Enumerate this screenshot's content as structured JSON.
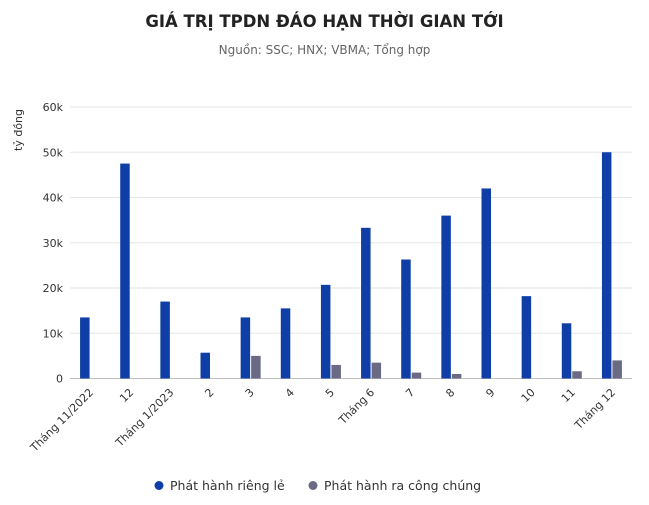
{
  "chart_data": {
    "type": "bar",
    "title": "GIÁ TRỊ TPDN ĐÁO HẠN THỜI GIAN TỚI",
    "subtitle": "Nguồn: SSC; HNX; VBMA; Tổng hợp",
    "ylabel": "tỷ đồng",
    "ylim": [
      0,
      60000
    ],
    "yticks": [
      "0",
      "10k",
      "20k",
      "30k",
      "40k",
      "50k",
      "60k"
    ],
    "ytick_values": [
      0,
      10000,
      20000,
      30000,
      40000,
      50000,
      60000
    ],
    "grid": true,
    "legend_position": "bottom",
    "categories": [
      "Tháng 11/2022",
      "12",
      "Tháng 1/2023",
      "2",
      "3",
      "4",
      "5",
      "Tháng 6",
      "7",
      "8",
      "9",
      "10",
      "11",
      "Tháng 12"
    ],
    "series": [
      {
        "name": "Phát hành riêng lẻ",
        "color": "#0f3fa6",
        "values": [
          13500,
          47500,
          17000,
          5700,
          13500,
          15500,
          20700,
          33300,
          26300,
          36000,
          42000,
          18200,
          12200,
          50000
        ]
      },
      {
        "name": "Phát hành ra công chúng",
        "color": "#6b6a84",
        "values": [
          0,
          0,
          0,
          0,
          5000,
          0,
          3000,
          3500,
          1300,
          1000,
          0,
          0,
          1600,
          4000
        ]
      }
    ]
  }
}
